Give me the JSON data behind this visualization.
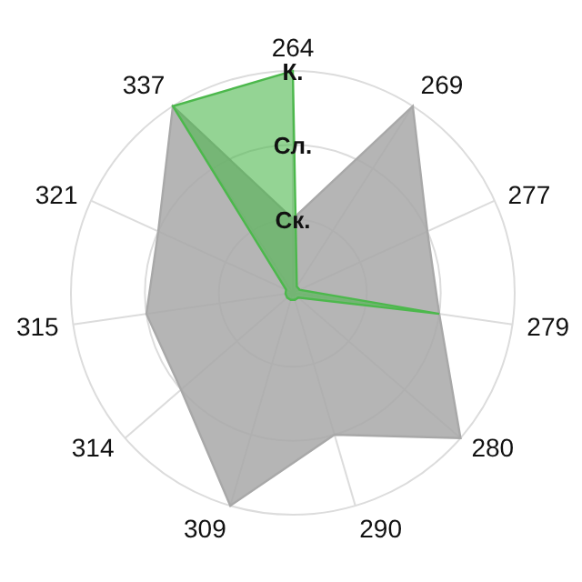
{
  "chart_data": {
    "type": "radar",
    "categories": [
      "264",
      "269",
      "277",
      "279",
      "280",
      "290",
      "309",
      "314",
      "315",
      "321",
      "337"
    ],
    "series": [
      {
        "color": "#a8a8a8",
        "values": [
          1,
          3,
          2,
          2,
          3,
          2,
          3,
          2,
          2,
          2,
          3
        ]
      },
      {
        "color": "#4cb84c",
        "values": [
          3,
          0.1,
          0.1,
          2,
          0.1,
          0.1,
          0.1,
          0.1,
          0.1,
          0.1,
          3
        ]
      }
    ],
    "ylim": [
      0,
      3
    ],
    "yticks": [
      {
        "value": 1,
        "label": "Ск."
      },
      {
        "value": 2,
        "label": "Сл."
      },
      {
        "value": 3,
        "label": "К."
      }
    ],
    "grid": true
  }
}
